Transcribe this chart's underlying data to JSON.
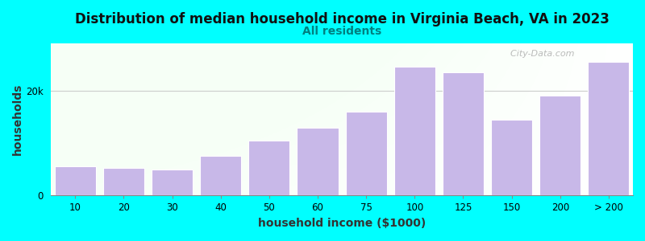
{
  "title": "Distribution of median household income in Virginia Beach, VA in 2023",
  "subtitle": "All residents",
  "xlabel": "household income ($1000)",
  "ylabel": "households",
  "background_color": "#00FFFF",
  "bar_color": "#c8b8e8",
  "bar_edge_color": "#b8a8d8",
  "categories": [
    "10",
    "20",
    "30",
    "40",
    "50",
    "60",
    "75",
    "100",
    "125",
    "150",
    "200",
    "> 200"
  ],
  "values": [
    5500,
    5200,
    5000,
    7500,
    10500,
    13000,
    16000,
    24500,
    23500,
    14500,
    19000,
    25500
  ],
  "ylim": [
    0,
    29000
  ],
  "yticks": [
    0,
    20000
  ],
  "ytick_labels": [
    "0",
    "20k"
  ],
  "watermark": "  City-Data.com",
  "title_fontsize": 12,
  "subtitle_fontsize": 10,
  "axis_label_fontsize": 10,
  "tick_fontsize": 8.5
}
